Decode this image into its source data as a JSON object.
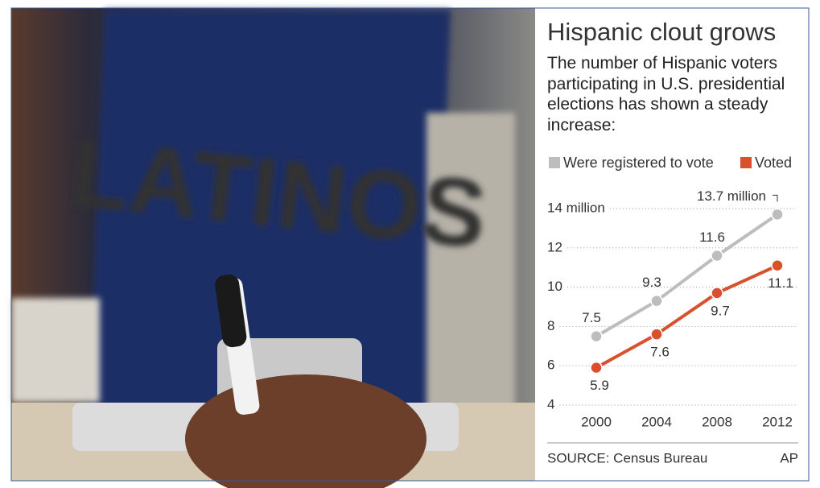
{
  "photo": {
    "sign_text": "LATINOS"
  },
  "chart_data": {
    "type": "line",
    "title": "Hispanic clout grows",
    "subtitle": "The number of Hispanic voters participating in U.S. presidential elections has shown a steady increase:",
    "categories": [
      "2000",
      "2004",
      "2008",
      "2012"
    ],
    "series": [
      {
        "name": "Were registered to vote",
        "color": "#bdbdbd",
        "values": [
          7.5,
          9.3,
          11.6,
          13.7
        ],
        "value_labels": [
          "7.5",
          "9.3",
          "11.6",
          "13.7 million"
        ]
      },
      {
        "name": "Voted",
        "color": "#d9512c",
        "values": [
          5.9,
          7.6,
          9.7,
          11.1
        ]
      }
    ],
    "ylim": [
      4,
      14
    ],
    "yticks": [
      4,
      6,
      8,
      10,
      12,
      {
        "value": 14,
        "label": "14 million"
      }
    ],
    "grid": true,
    "source": "SOURCE: Census Bureau",
    "credit": "AP"
  }
}
